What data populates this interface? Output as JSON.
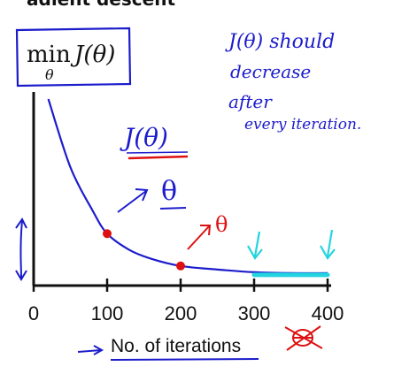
{
  "header_fragment": "adient descent",
  "formula": {
    "min": "min",
    "expr": "J(θ)",
    "subscript": "θ"
  },
  "notes": {
    "line1": "J(θ) should",
    "line2": "decrease",
    "line3": "after",
    "line4": "every iteration."
  },
  "curve_label": "J(θ)",
  "theta_label_1": "θ",
  "theta_label_2": "θ",
  "chart_data": {
    "type": "line",
    "x_ticks": [
      "0",
      "100",
      "200",
      "300",
      "400"
    ],
    "xlabel": "No. of iterations",
    "xlim": [
      0,
      400
    ],
    "series": [
      {
        "x": [
          20,
          50,
          80,
          100,
          130,
          160,
          200,
          250,
          300,
          350,
          400
        ],
        "y": [
          1.0,
          0.62,
          0.38,
          0.25,
          0.16,
          0.11,
          0.07,
          0.05,
          0.035,
          0.03,
          0.03
        ]
      }
    ],
    "highlighted_points": [
      {
        "x": 100,
        "y": 0.25
      },
      {
        "x": 200,
        "y": 0.07
      }
    ],
    "converged_segment": {
      "x_start": 300,
      "x_end": 400,
      "y": 0.03
    }
  },
  "colors": {
    "ink_blue": "#1c1ccc",
    "ink_red": "#dd1111",
    "ink_cyan": "#22d4e0",
    "ink_black": "#111111"
  }
}
